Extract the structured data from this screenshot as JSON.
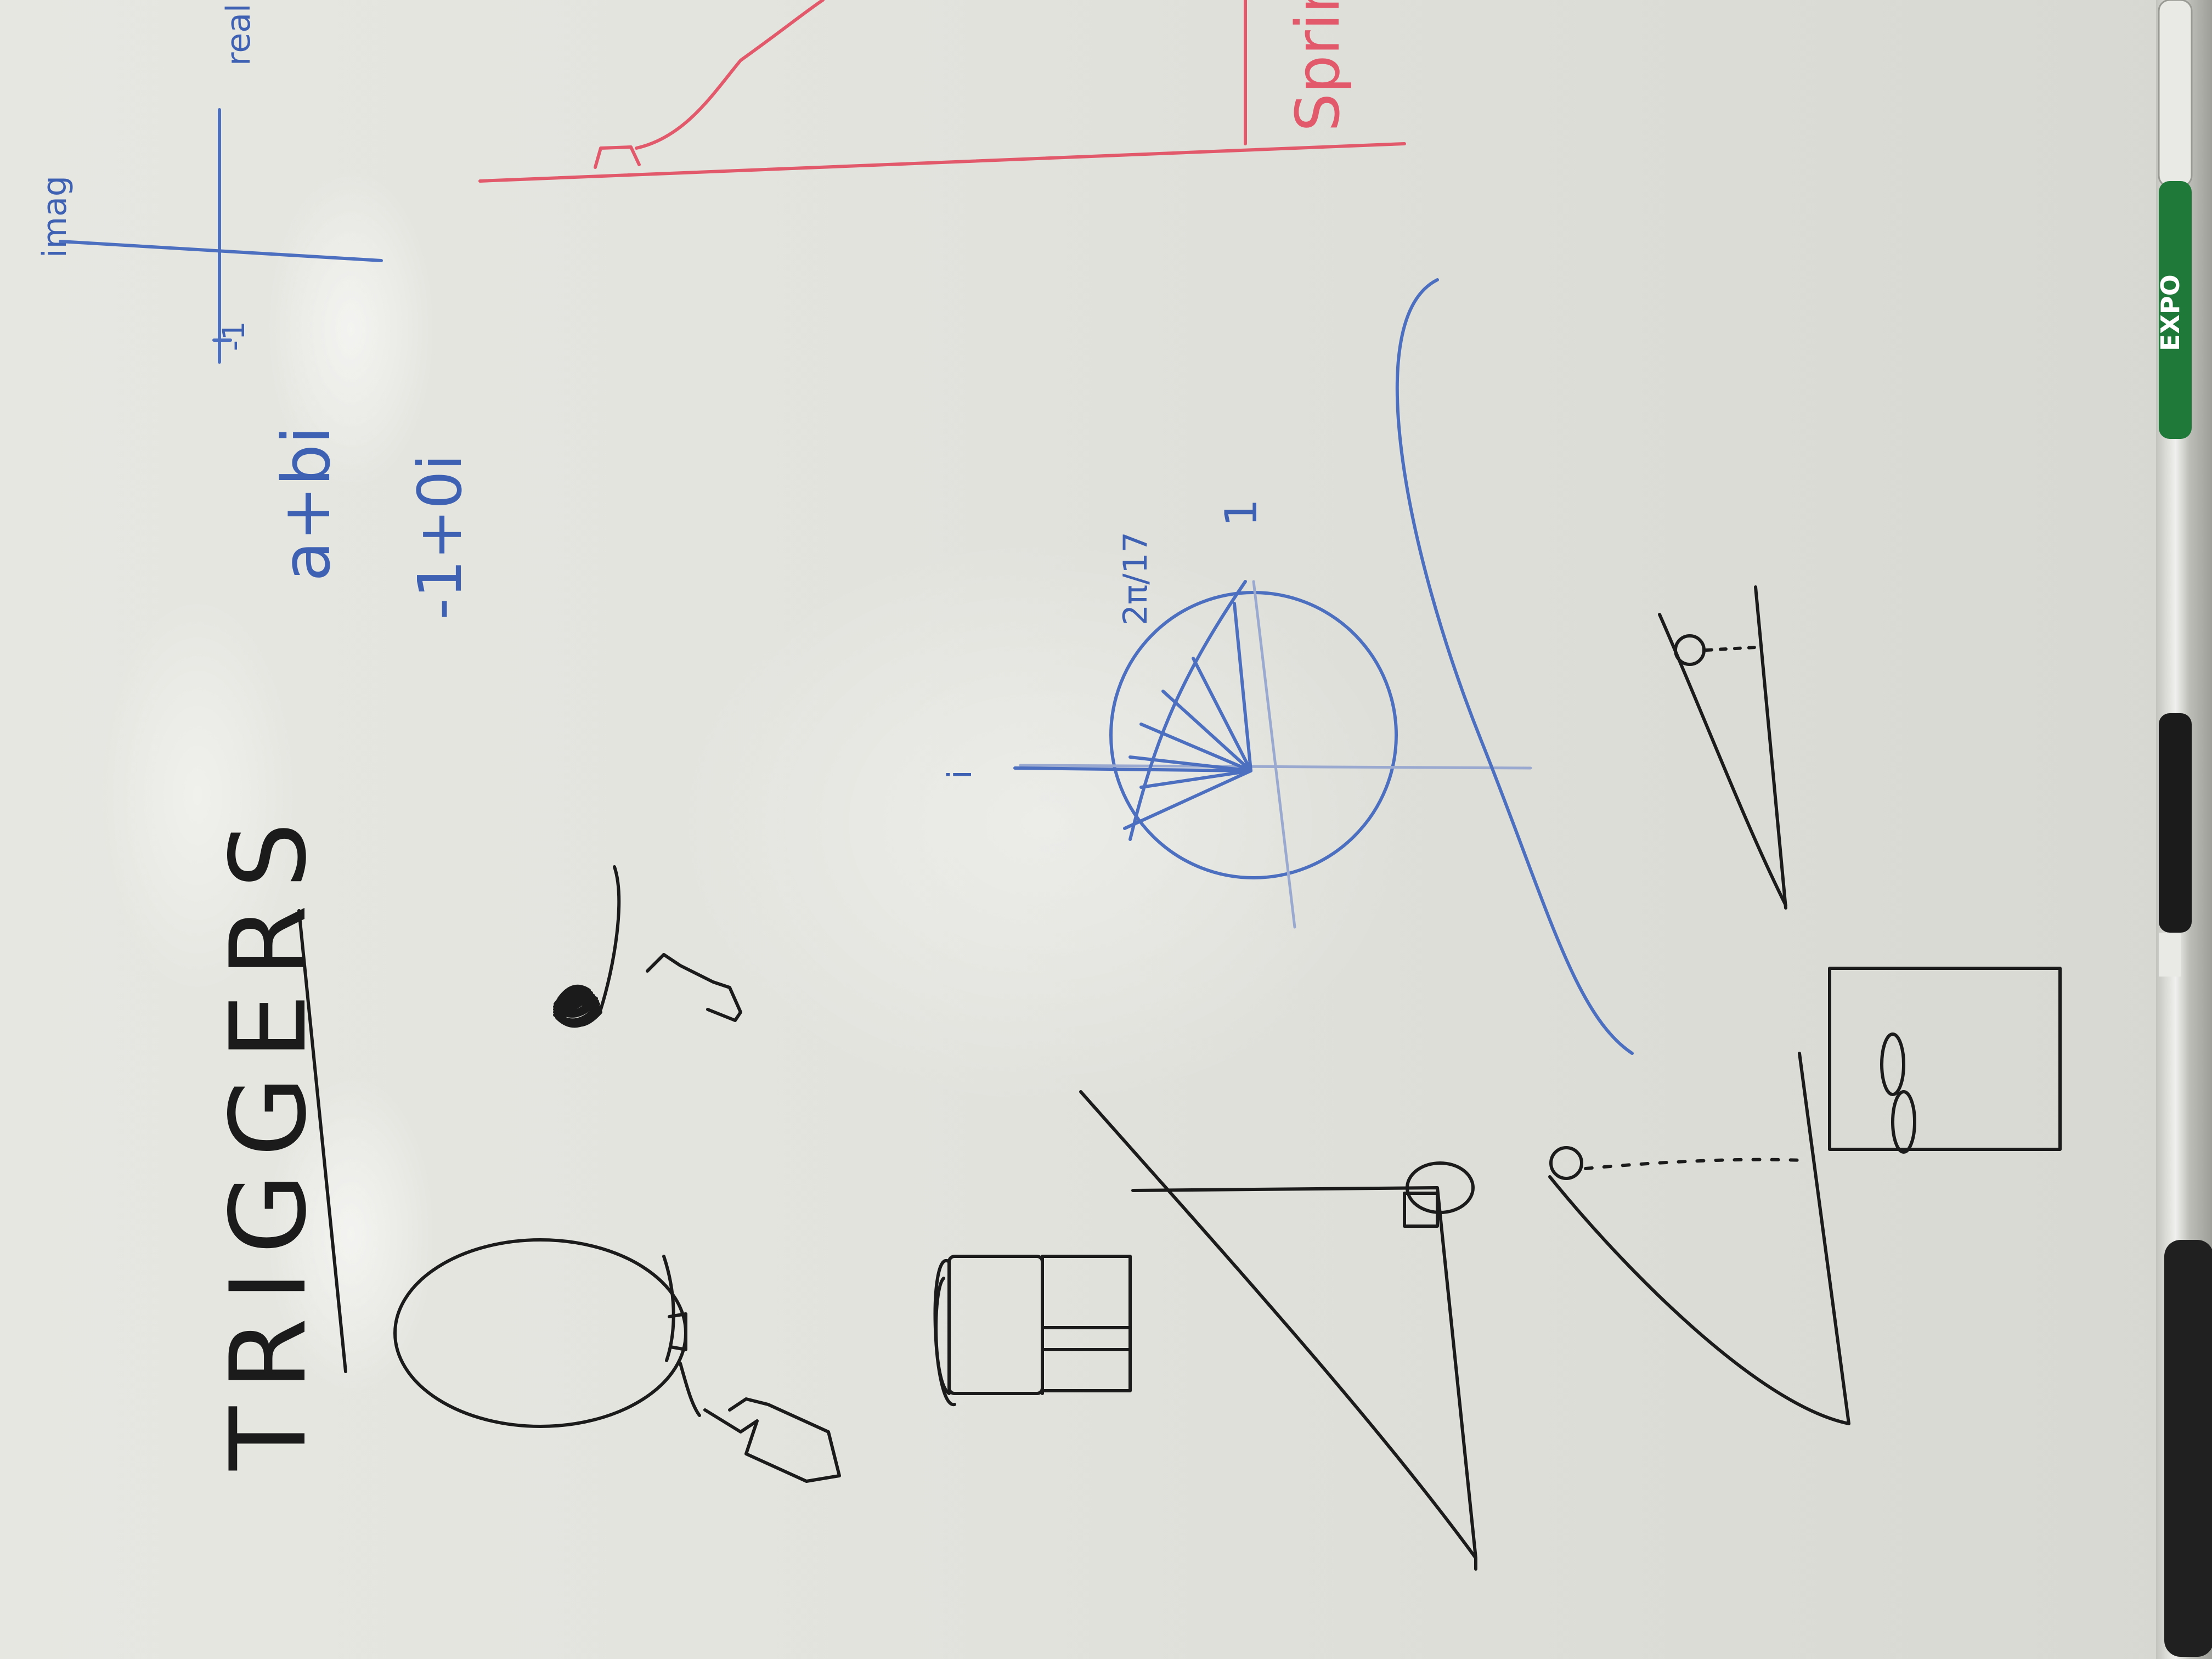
{
  "board": {
    "title": "TRIGGERS",
    "complex": {
      "form": "a+bi",
      "example": "-1+0i",
      "axis_real": "real",
      "axis_imag": "imag",
      "tick_neg": "-1"
    },
    "unit_circle": {
      "angle_label": "2π/17",
      "tick_top": "1",
      "tick_left": "i"
    },
    "red_label": "Spring"
  },
  "markers": {
    "brand": "EXPO",
    "colors": [
      "#1f7a3a",
      "#1b1b1b",
      "#1b1b1b"
    ]
  },
  "colors": {
    "black_ink": "#1b1b1b",
    "blue_ink": "#4d6fbf",
    "red_ink": "#e2596b",
    "board": "#e5e5e0"
  }
}
